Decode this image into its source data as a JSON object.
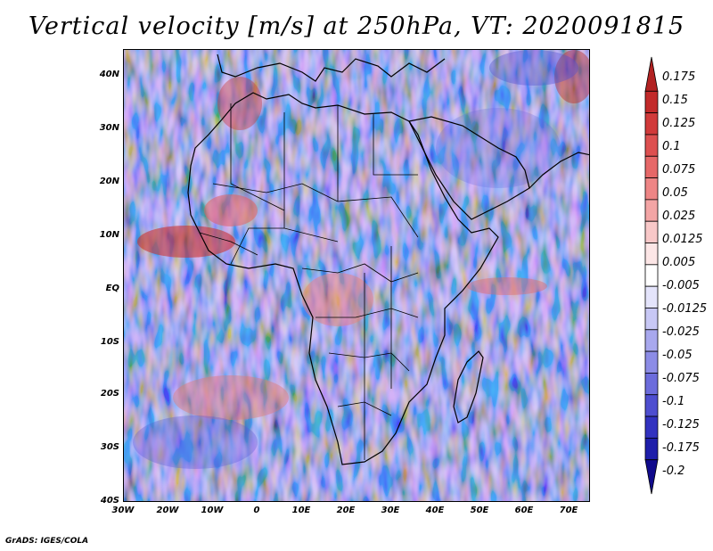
{
  "title": "Vertical velocity [m/s] at 250hPa, VT: 2020091815",
  "map": {
    "lat_labels": [
      "40N",
      "30N",
      "20N",
      "10N",
      "EQ",
      "10S",
      "20S",
      "30S",
      "40S"
    ],
    "lon_labels": [
      "30W",
      "20W",
      "10W",
      "0",
      "10E",
      "20E",
      "30E",
      "40E",
      "50E",
      "60E",
      "70E"
    ],
    "lat_range": [
      -40,
      45
    ],
    "lon_range": [
      -30,
      75
    ]
  },
  "legend": {
    "labels": [
      "0.175",
      "0.15",
      "0.125",
      "0.1",
      "0.075",
      "0.05",
      "0.025",
      "0.0125",
      "0.005",
      "-0.005",
      "-0.0125",
      "-0.025",
      "-0.05",
      "-0.075",
      "-0.1",
      "-0.125",
      "-0.175",
      "-0.2"
    ],
    "colors": [
      "#b22222",
      "#c22a2a",
      "#d13a3a",
      "#dd5050",
      "#e66868",
      "#ee8585",
      "#f3a5a5",
      "#f8c8c8",
      "#fce6e6",
      "#ffffff",
      "#e4e4fb",
      "#c8c8f5",
      "#a8a8ee",
      "#8c8ce6",
      "#6c6cdc",
      "#4e4ed0",
      "#3232c0",
      "#1e1eaa",
      "#100a8c"
    ]
  },
  "credit": "GrADS: IGES/COLA"
}
